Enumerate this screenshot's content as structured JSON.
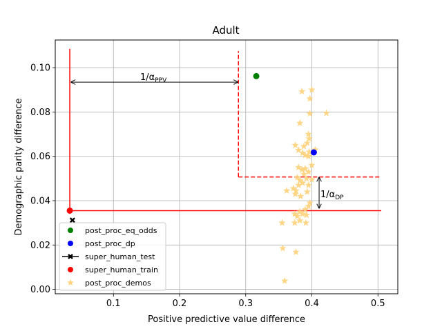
{
  "chart_data": {
    "type": "scatter",
    "title": "Adult",
    "xlabel": "Positive predictive value difference",
    "ylabel": "Demographic parity difference",
    "xlim": [
      0.012,
      0.53
    ],
    "ylim": [
      -0.002,
      0.1125
    ],
    "xticks": [
      0.1,
      0.2,
      0.3,
      0.4,
      0.5
    ],
    "xtick_labels": [
      "0.1",
      "0.2",
      "0.3",
      "0.4",
      "0.5"
    ],
    "yticks": [
      0.0,
      0.02,
      0.04,
      0.06,
      0.08,
      0.1
    ],
    "ytick_labels": [
      "0.00",
      "0.02",
      "0.04",
      "0.06",
      "0.08",
      "0.10"
    ],
    "grid": true,
    "legend_position": "lower-left",
    "colors": {
      "eq_odds": "#008000",
      "dp": "#0000ff",
      "test": "#000000",
      "train": "#ff0000",
      "demos": "#ffd27a",
      "train_lines": "#ff0000"
    },
    "series": [
      {
        "name": "post_proc_eq_odds",
        "marker": "circle",
        "points": [
          [
            0.316,
            0.0962
          ]
        ]
      },
      {
        "name": "post_proc_dp",
        "marker": "circle",
        "points": [
          [
            0.403,
            0.0618
          ]
        ]
      },
      {
        "name": "super_human_test",
        "marker": "x",
        "points": [
          [
            0.038,
            0.0312
          ]
        ]
      },
      {
        "name": "super_human_train",
        "marker": "circle",
        "points": [
          [
            0.034,
            0.0355
          ]
        ]
      },
      {
        "name": "post_proc_demos",
        "marker": "star",
        "points": [
          [
            0.385,
            0.0893
          ],
          [
            0.4,
            0.09
          ],
          [
            0.397,
            0.086
          ],
          [
            0.397,
            0.0793
          ],
          [
            0.422,
            0.0795
          ],
          [
            0.382,
            0.075
          ],
          [
            0.395,
            0.07
          ],
          [
            0.396,
            0.068
          ],
          [
            0.393,
            0.066
          ],
          [
            0.388,
            0.0645
          ],
          [
            0.375,
            0.065
          ],
          [
            0.38,
            0.0628
          ],
          [
            0.386,
            0.0615
          ],
          [
            0.39,
            0.0605
          ],
          [
            0.396,
            0.062
          ],
          [
            0.405,
            0.063
          ],
          [
            0.395,
            0.06
          ],
          [
            0.4,
            0.056
          ],
          [
            0.38,
            0.055
          ],
          [
            0.385,
            0.054
          ],
          [
            0.39,
            0.0545
          ],
          [
            0.395,
            0.053
          ],
          [
            0.388,
            0.052
          ],
          [
            0.378,
            0.0505
          ],
          [
            0.382,
            0.0492
          ],
          [
            0.392,
            0.05
          ],
          [
            0.4,
            0.0495
          ],
          [
            0.38,
            0.047
          ],
          [
            0.386,
            0.048
          ],
          [
            0.395,
            0.047
          ],
          [
            0.372,
            0.0455
          ],
          [
            0.376,
            0.0445
          ],
          [
            0.362,
            0.0445
          ],
          [
            0.375,
            0.043
          ],
          [
            0.393,
            0.044
          ],
          [
            0.383,
            0.042
          ],
          [
            0.397,
            0.039
          ],
          [
            0.395,
            0.0375
          ],
          [
            0.39,
            0.036
          ],
          [
            0.382,
            0.035
          ],
          [
            0.374,
            0.034
          ],
          [
            0.378,
            0.033
          ],
          [
            0.386,
            0.034
          ],
          [
            0.392,
            0.0335
          ],
          [
            0.355,
            0.03
          ],
          [
            0.374,
            0.03
          ],
          [
            0.382,
            0.031
          ],
          [
            0.391,
            0.03
          ],
          [
            0.356,
            0.0185
          ],
          [
            0.376,
            0.0168
          ],
          [
            0.359,
            0.0038
          ]
        ]
      }
    ],
    "train_bounds": {
      "x": 0.034,
      "y": 0.0355,
      "x_end": 0.505,
      "y_top": 0.1085
    },
    "test_bounds": {
      "x": 0.289,
      "y": 0.0507,
      "x_end": 0.505,
      "y_top": 0.1075
    },
    "arrow_ppv": {
      "x1": 0.036,
      "x2": 0.288,
      "y": 0.0935
    },
    "arrow_dp": {
      "x": 0.411,
      "y1": 0.0367,
      "y2": 0.0505
    },
    "annotations": {
      "ppv_label_main": "1/α",
      "ppv_label_sub": "PPV",
      "dp_label_main": "1/α",
      "dp_label_sub": "DP"
    }
  }
}
